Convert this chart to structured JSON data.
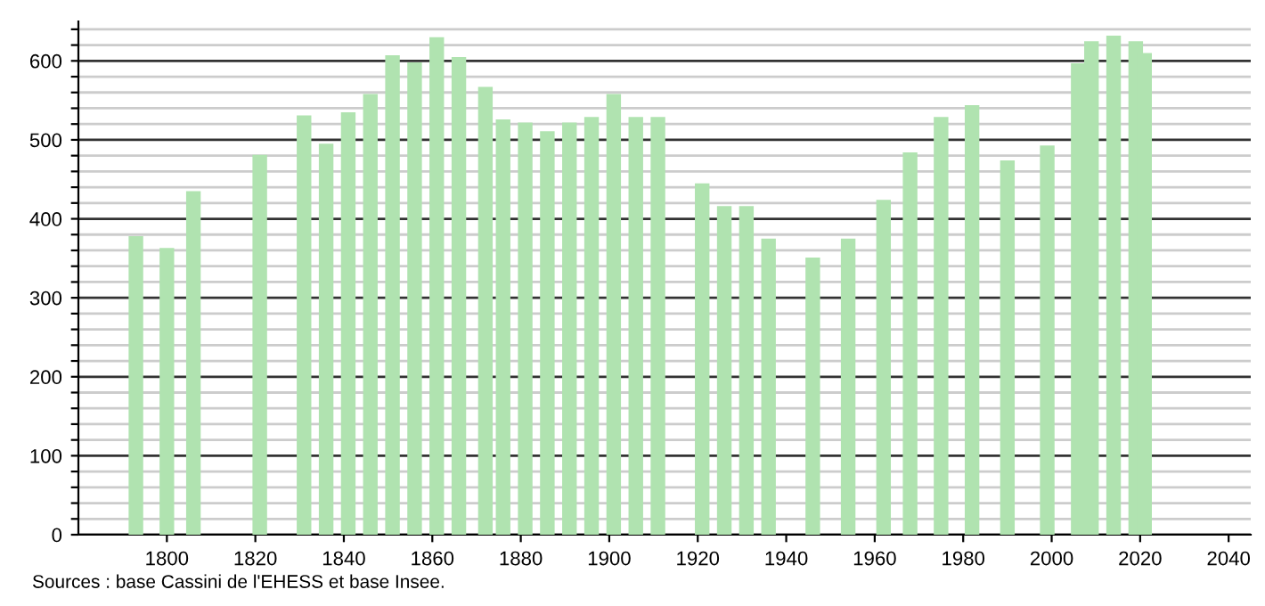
{
  "chart_data": {
    "type": "bar",
    "x": [
      1793,
      1800,
      1806,
      1821,
      1831,
      1836,
      1841,
      1846,
      1851,
      1856,
      1861,
      1866,
      1872,
      1876,
      1881,
      1886,
      1891,
      1896,
      1901,
      1906,
      1911,
      1921,
      1926,
      1931,
      1936,
      1946,
      1954,
      1962,
      1968,
      1975,
      1982,
      1990,
      1999,
      2006,
      2009,
      2014,
      2019,
      2021
    ],
    "values": [
      378,
      363,
      435,
      481,
      531,
      495,
      535,
      558,
      607,
      598,
      630,
      605,
      567,
      526,
      522,
      511,
      522,
      529,
      558,
      529,
      529,
      445,
      416,
      416,
      375,
      351,
      375,
      424,
      484,
      529,
      544,
      474,
      493,
      597,
      625,
      632,
      625,
      610
    ],
    "color": "#b0e3b0",
    "xlim": [
      1780,
      2045
    ],
    "xticks": [
      1800,
      1820,
      1840,
      1860,
      1880,
      1900,
      1920,
      1940,
      1960,
      1980,
      2000,
      2020,
      2040
    ],
    "ylim": [
      0,
      650
    ],
    "yticks": [
      0,
      {
        "value": 20,
        "label": null
      },
      {
        "value": 40,
        "label": null
      },
      {
        "value": 60,
        "label": null
      },
      {
        "value": 80,
        "label": null
      },
      100,
      {
        "value": 120,
        "label": null
      },
      {
        "value": 140,
        "label": null
      },
      {
        "value": 160,
        "label": null
      },
      {
        "value": 180,
        "label": null
      },
      200,
      {
        "value": 220,
        "label": null
      },
      {
        "value": 240,
        "label": null
      },
      {
        "value": 260,
        "label": null
      },
      {
        "value": 280,
        "label": null
      },
      300,
      {
        "value": 320,
        "label": null
      },
      {
        "value": 340,
        "label": null
      },
      {
        "value": 360,
        "label": null
      },
      {
        "value": 380,
        "label": null
      },
      400,
      {
        "value": 420,
        "label": null
      },
      {
        "value": 440,
        "label": null
      },
      {
        "value": 460,
        "label": null
      },
      {
        "value": 480,
        "label": null
      },
      500,
      {
        "value": 520,
        "label": null
      },
      {
        "value": 540,
        "label": null
      },
      {
        "value": 560,
        "label": null
      },
      {
        "value": 580,
        "label": null
      },
      600,
      {
        "value": 620,
        "label": null
      },
      {
        "value": 640,
        "label": null
      }
    ],
    "grid": "y",
    "annotations": [
      "Sources : base Cassini de l'EHESS et base Insee."
    ]
  }
}
